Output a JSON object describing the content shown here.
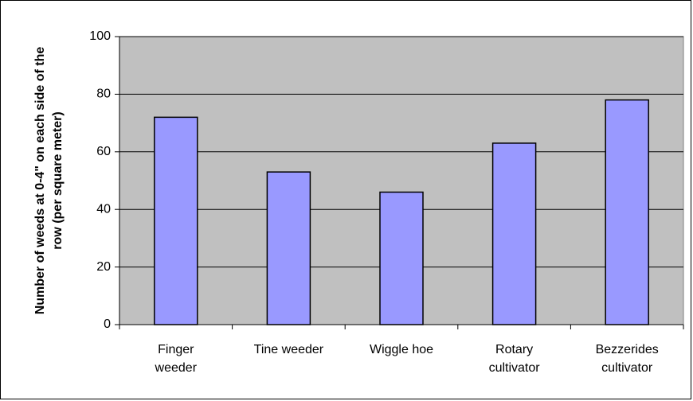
{
  "chart_data": {
    "type": "bar",
    "y_label": "Number of weeds at 0-4\" on each side of the row (per square meter)",
    "categories": [
      "Finger weeder",
      "Tine weeder",
      "Wiggle hoe",
      "Rotary cultivator",
      "Bezzerides cultivator"
    ],
    "values": [
      72,
      53,
      46,
      63,
      78
    ],
    "color": "#9999ff",
    "ylim": [
      0,
      100
    ],
    "yticks": [
      0,
      20,
      40,
      60,
      80,
      100
    ],
    "grid": true
  }
}
